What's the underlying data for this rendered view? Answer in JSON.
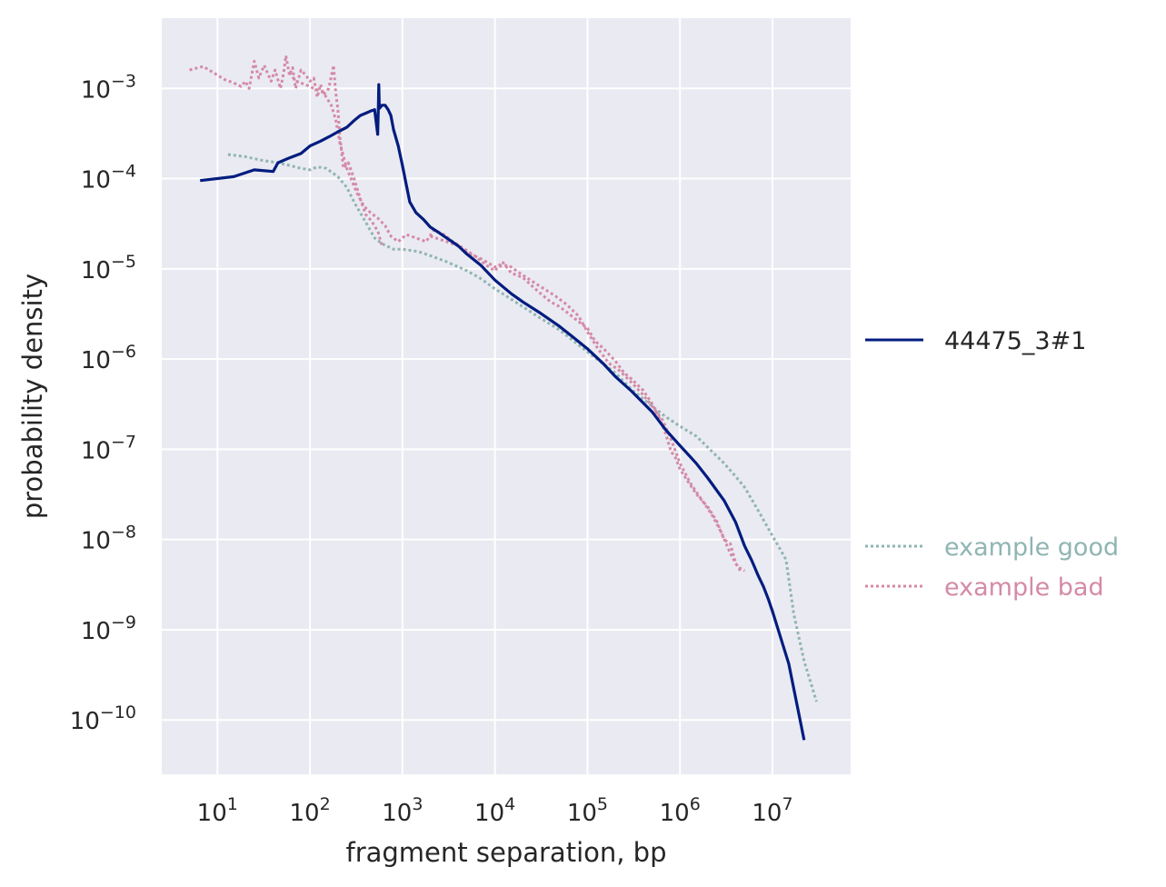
{
  "chart_data": {
    "type": "line",
    "xlabel": "fragment separation, bp",
    "ylabel": "probability density",
    "x_scale": "log",
    "y_scale": "log",
    "xlim": [
      2.5,
      70000000
    ],
    "ylim": [
      2.5e-11,
      0.006
    ],
    "grid": true,
    "legend_placement": "right",
    "x_ticks": [
      {
        "value": 10,
        "base": "10",
        "exp": "1"
      },
      {
        "value": 100,
        "base": "10",
        "exp": "2"
      },
      {
        "value": 1000,
        "base": "10",
        "exp": "3"
      },
      {
        "value": 10000,
        "base": "10",
        "exp": "4"
      },
      {
        "value": 100000,
        "base": "10",
        "exp": "5"
      },
      {
        "value": 1000000,
        "base": "10",
        "exp": "6"
      },
      {
        "value": 10000000,
        "base": "10",
        "exp": "7"
      }
    ],
    "y_ticks": [
      {
        "value": 0.001,
        "base": "10",
        "exp": "−3"
      },
      {
        "value": 0.0001,
        "base": "10",
        "exp": "−4"
      },
      {
        "value": 1e-05,
        "base": "10",
        "exp": "−5"
      },
      {
        "value": 1e-06,
        "base": "10",
        "exp": "−6"
      },
      {
        "value": 1e-07,
        "base": "10",
        "exp": "−7"
      },
      {
        "value": 1e-08,
        "base": "10",
        "exp": "−8"
      },
      {
        "value": 1e-09,
        "base": "10",
        "exp": "−9"
      },
      {
        "value": 1e-10,
        "base": "10",
        "exp": "−10"
      }
    ],
    "colors": {
      "main": "#001c7f",
      "good": "#8fb5b2",
      "bad": "#d48aa7",
      "plot_bg": "#eaeaf2",
      "grid": "#ffffff"
    },
    "series": [
      {
        "name": "44475_3#1",
        "color": "#001c7f",
        "style": "solid",
        "points": [
          [
            6.5,
            9.5e-05
          ],
          [
            15,
            0.000105
          ],
          [
            25,
            0.000125
          ],
          [
            40,
            0.00012
          ],
          [
            45,
            0.00015
          ],
          [
            60,
            0.00017
          ],
          [
            80,
            0.00019
          ],
          [
            100,
            0.00023
          ],
          [
            130,
            0.00026
          ],
          [
            160,
            0.00029
          ],
          [
            200,
            0.00033
          ],
          [
            250,
            0.00037
          ],
          [
            300,
            0.00044
          ],
          [
            350,
            0.0005
          ],
          [
            400,
            0.00053
          ],
          [
            450,
            0.00056
          ],
          [
            500,
            0.00058
          ],
          [
            540,
            0.00031
          ],
          [
            548,
            0.0006
          ],
          [
            555,
            0.0011
          ],
          [
            562,
            0.0006
          ],
          [
            600,
            0.00065
          ],
          [
            650,
            0.00065
          ],
          [
            700,
            0.00058
          ],
          [
            750,
            0.0005
          ],
          [
            800,
            0.00035
          ],
          [
            900,
            0.00023
          ],
          [
            1000,
            0.00014
          ],
          [
            1100,
            8.5e-05
          ],
          [
            1200,
            5.5e-05
          ],
          [
            1400,
            4.2e-05
          ],
          [
            1700,
            3.5e-05
          ],
          [
            2000,
            2.9e-05
          ],
          [
            2500,
            2.5e-05
          ],
          [
            3000,
            2.2e-05
          ],
          [
            4000,
            1.8e-05
          ],
          [
            5000,
            1.45e-05
          ],
          [
            7000,
            1.1e-05
          ],
          [
            10000,
            7.5e-06
          ],
          [
            15000,
            5.3e-06
          ],
          [
            20000,
            4.3e-06
          ],
          [
            30000,
            3.3e-06
          ],
          [
            50000,
            2.3e-06
          ],
          [
            70000,
            1.75e-06
          ],
          [
            100000,
            1.3e-06
          ],
          [
            150000,
            8.8e-07
          ],
          [
            200000,
            6.4e-07
          ],
          [
            300000,
            4.4e-07
          ],
          [
            500000,
            2.6e-07
          ],
          [
            700000,
            1.65e-07
          ],
          [
            1000000,
            1.1e-07
          ],
          [
            1500000,
            7e-08
          ],
          [
            2000000,
            4.8e-08
          ],
          [
            3000000,
            2.7e-08
          ],
          [
            4000000,
            1.55e-08
          ],
          [
            5000000,
            8.5e-09
          ],
          [
            6000000,
            5.8e-09
          ],
          [
            7000000,
            4e-09
          ],
          [
            8000000,
            3e-09
          ],
          [
            9000000,
            2.2e-09
          ],
          [
            10000000,
            1.6e-09
          ],
          [
            15000000,
            4.2e-10
          ],
          [
            22000000,
            6e-11
          ]
        ]
      },
      {
        "name": "example good",
        "color": "#8fb5b2",
        "style": "dotted",
        "points": [
          [
            13,
            0.000185
          ],
          [
            20,
            0.000175
          ],
          [
            30,
            0.00016
          ],
          [
            45,
            0.00015
          ],
          [
            60,
            0.00014
          ],
          [
            80,
            0.00013
          ],
          [
            100,
            0.000125
          ],
          [
            120,
            0.000135
          ],
          [
            150,
            0.00013
          ],
          [
            200,
            0.000105
          ],
          [
            250,
            8e-05
          ],
          [
            300,
            5.5e-05
          ],
          [
            400,
            3.3e-05
          ],
          [
            500,
            2.2e-05
          ],
          [
            600,
            1.9e-05
          ],
          [
            800,
            1.65e-05
          ],
          [
            1000,
            1.65e-05
          ],
          [
            1500,
            1.55e-05
          ],
          [
            2000,
            1.4e-05
          ],
          [
            3000,
            1.2e-05
          ],
          [
            5000,
            9.5e-06
          ],
          [
            7000,
            7.8e-06
          ],
          [
            10000,
            6e-06
          ],
          [
            15000,
            4.6e-06
          ],
          [
            20000,
            3.8e-06
          ],
          [
            30000,
            2.9e-06
          ],
          [
            50000,
            2.1e-06
          ],
          [
            70000,
            1.6e-06
          ],
          [
            100000,
            1.2e-06
          ],
          [
            200000,
            7e-07
          ],
          [
            300000,
            4.6e-07
          ],
          [
            500000,
            3e-07
          ],
          [
            700000,
            2.3e-07
          ],
          [
            1000000,
            1.8e-07
          ],
          [
            1500000,
            1.4e-07
          ],
          [
            2000000,
            1.05e-07
          ],
          [
            3000000,
            7e-08
          ],
          [
            4000000,
            5e-08
          ],
          [
            5000000,
            3.8e-08
          ],
          [
            7000000,
            2.1e-08
          ],
          [
            10000000,
            1.1e-08
          ],
          [
            14000000,
            6e-09
          ],
          [
            17000000,
            1.5e-09
          ],
          [
            22000000,
            4.5e-10
          ],
          [
            30000000,
            1.6e-10
          ]
        ]
      },
      {
        "name": "example bad",
        "color": "#d48aa7",
        "style": "dotted",
        "segments": [
          [
            [
              5,
              0.0016
            ],
            [
              7,
              0.00175
            ],
            [
              9,
              0.0015
            ],
            [
              12,
              0.00125
            ],
            [
              15,
              0.00115
            ],
            [
              18,
              0.00105
            ],
            [
              20,
              0.0012
            ],
            [
              22,
              0.001
            ],
            [
              25,
              0.002
            ],
            [
              28,
              0.0013
            ],
            [
              32,
              0.0018
            ],
            [
              38,
              0.0012
            ],
            [
              42,
              0.0016
            ],
            [
              48,
              0.001
            ],
            [
              52,
              0.0015
            ],
            [
              55,
              0.0023
            ],
            [
              60,
              0.0014
            ],
            [
              65,
              0.0017
            ],
            [
              70,
              0.001
            ],
            [
              80,
              0.0016
            ],
            [
              90,
              0.0014
            ],
            [
              100,
              0.0012
            ],
            [
              110,
              0.0013
            ],
            [
              120,
              0.0008
            ],
            [
              130,
              0.0011
            ],
            [
              140,
              0.00085
            ],
            [
              160,
              0.001
            ],
            [
              180,
              0.0018
            ],
            [
              190,
              0.0009
            ],
            [
              200,
              0.0006
            ],
            [
              210,
              0.0003
            ],
            [
              230,
              0.00013
            ],
            [
              260,
              0.00015
            ],
            [
              300,
              0.0001
            ],
            [
              350,
              6e-05
            ],
            [
              400,
              4e-05
            ],
            [
              450,
              3.5e-05
            ],
            [
              500,
              3e-05
            ],
            [
              550,
              2.5e-05
            ],
            [
              600,
              1.8e-05
            ]
          ],
          [
            [
              60,
              0.0015
            ],
            [
              70,
              0.0012
            ],
            [
              90,
              0.0011
            ],
            [
              110,
              0.001
            ],
            [
              140,
              0.0009
            ],
            [
              170,
              0.00065
            ],
            [
              190,
              0.00045
            ],
            [
              210,
              0.00025
            ],
            [
              250,
              0.00013
            ],
            [
              320,
              7e-05
            ],
            [
              380,
              5e-05
            ],
            [
              450,
              4.2e-05
            ],
            [
              550,
              3.6e-05
            ],
            [
              650,
              3e-05
            ],
            [
              750,
              2.3e-05
            ],
            [
              900,
              2e-05
            ],
            [
              1100,
              2.4e-05
            ],
            [
              1400,
              2.2e-05
            ],
            [
              1800,
              2e-05
            ],
            [
              2200,
              2.7e-05
            ],
            [
              2800,
              2.4e-05
            ],
            [
              3500,
              2e-05
            ],
            [
              4500,
              1.7e-05
            ],
            [
              6000,
              1.4e-05
            ],
            [
              8000,
              1.1e-05
            ],
            [
              10000,
              9.5e-06
            ],
            [
              12000,
              1.2e-05
            ],
            [
              15000,
              9e-06
            ],
            [
              20000,
              8e-06
            ],
            [
              25000,
              6.5e-06
            ],
            [
              30000,
              5.5e-06
            ],
            [
              40000,
              4.3e-06
            ],
            [
              50000,
              3.8e-06
            ],
            [
              60000,
              3.3e-06
            ],
            [
              80000,
              2.6e-06
            ],
            [
              100000,
              2.2e-06
            ],
            [
              120000,
              1.6e-06
            ],
            [
              150000,
              1.3e-06
            ],
            [
              200000,
              9.5e-07
            ],
            [
              250000,
              7e-07
            ],
            [
              300000,
              6e-07
            ],
            [
              400000,
              4.5e-07
            ],
            [
              500000,
              3.2e-07
            ],
            [
              600000,
              2.2e-07
            ],
            [
              700000,
              1.5e-07
            ],
            [
              800000,
              9.5e-08
            ],
            [
              900000,
              8e-08
            ],
            [
              1000000,
              6e-08
            ],
            [
              1200000,
              4.5e-08
            ],
            [
              1500000,
              3.2e-08
            ],
            [
              2000000,
              2.3e-08
            ],
            [
              2500000,
              1.6e-08
            ],
            [
              3000000,
              1e-08
            ],
            [
              3500000,
              9e-09
            ],
            [
              4000000,
              5.5e-09
            ],
            [
              4500000,
              4.5e-09
            ]
          ],
          [
            [
              2000,
              2.3e-05
            ],
            [
              3000,
              2e-05
            ],
            [
              4000,
              1.8e-05
            ],
            [
              5000,
              1.5e-05
            ],
            [
              7000,
              1.3e-05
            ],
            [
              10000,
              1.05e-05
            ],
            [
              14000,
              1.1e-05
            ],
            [
              20000,
              8.5e-06
            ],
            [
              30000,
              6.5e-06
            ],
            [
              45000,
              5e-06
            ],
            [
              60000,
              4e-06
            ],
            [
              80000,
              3e-06
            ],
            [
              100000,
              2e-06
            ],
            [
              130000,
              1.3e-06
            ],
            [
              170000,
              9e-07
            ],
            [
              220000,
              7.5e-07
            ],
            [
              300000,
              5.5e-07
            ],
            [
              400000,
              4e-07
            ],
            [
              500000,
              3e-07
            ],
            [
              650000,
              2.1e-07
            ],
            [
              800000,
              1.3e-07
            ],
            [
              1000000,
              7e-08
            ],
            [
              1300000,
              4.2e-08
            ],
            [
              1700000,
              2.8e-08
            ],
            [
              2200000,
              1.9e-08
            ],
            [
              2800000,
              1.2e-08
            ],
            [
              3500000,
              7e-09
            ],
            [
              4200000,
              5e-09
            ],
            [
              5000000,
              4.5e-09
            ]
          ]
        ]
      }
    ]
  }
}
